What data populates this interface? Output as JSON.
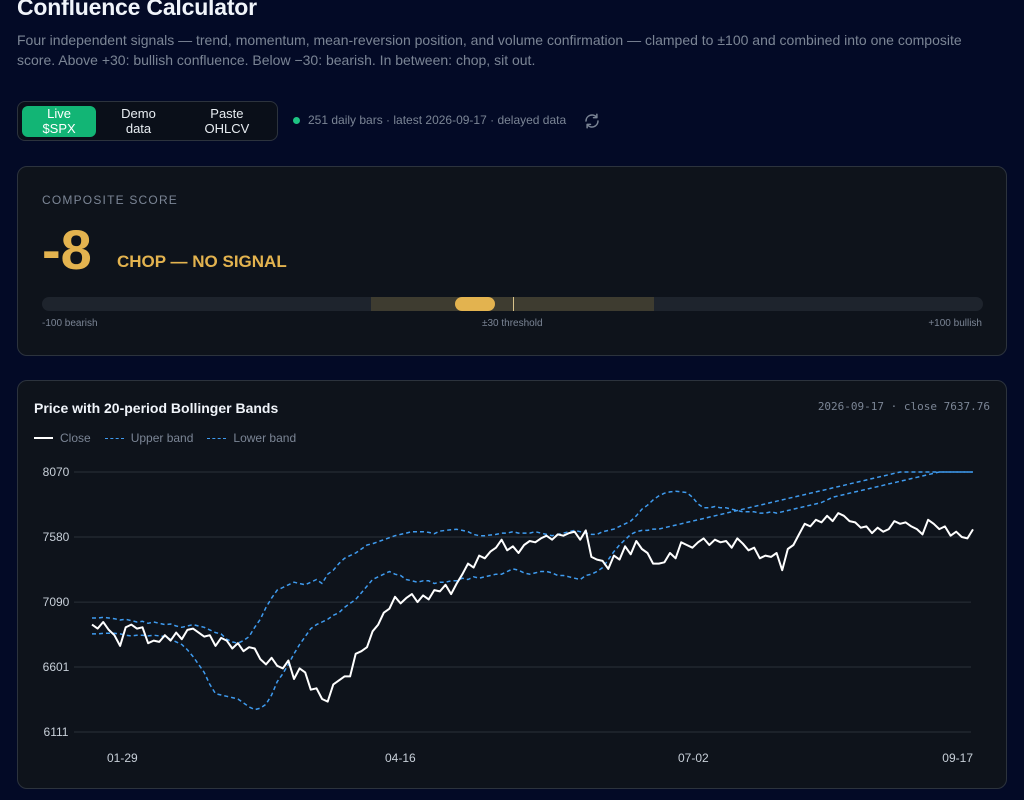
{
  "header": {
    "title": "Confluence Calculator",
    "subtitle": "Four independent signals — trend, momentum, mean-reversion position, and volume confirmation — clamped to ±100 and combined into one composite score. Above +30: bullish confluence. Below −30: bearish. In between: chop, sit out."
  },
  "toolbar": {
    "live_label": "Live $SPX",
    "demo_label": "Demo data",
    "paste_label": "Paste OHLCV",
    "active": "live"
  },
  "status": {
    "text": "251 daily bars · latest 2026-09-17  · delayed data",
    "indicator_color": "#1ec483",
    "refresh_icon": "refresh-icon"
  },
  "composite": {
    "label": "COMPOSITE SCORE",
    "value": "-8",
    "score": -8,
    "verdict": "CHOP — NO SIGNAL",
    "color": "#e3b34f",
    "threshold": 30,
    "scale_min_label": "-100 bearish",
    "scale_mid_label": "±30 threshold",
    "scale_max_label": "+100 bullish"
  },
  "chart_header": {
    "title": "Price with 20-period Bollinger Bands",
    "meta": "2026-09-17 · close 7637.76"
  },
  "chart_data": {
    "type": "line",
    "title": "Price with 20-period Bollinger Bands",
    "xlabel": "",
    "ylabel": "",
    "ylim": [
      6111,
      8070
    ],
    "y_ticks": [
      "8070",
      "7580",
      "7090",
      "6601",
      "6111"
    ],
    "x_ticks": [
      "01-29",
      "04-16",
      "07-02",
      "09-17"
    ],
    "grid": true,
    "legend_position": "top-left",
    "series": [
      {
        "name": "Close",
        "color": "#ffffff",
        "style": "solid",
        "values": [
          6920,
          6890,
          6940,
          6880,
          6840,
          6760,
          6900,
          6920,
          6890,
          6900,
          6780,
          6800,
          6790,
          6840,
          6800,
          6860,
          6810,
          6880,
          6890,
          6860,
          6830,
          6840,
          6760,
          6820,
          6800,
          6740,
          6780,
          6720,
          6750,
          6740,
          6660,
          6620,
          6670,
          6610,
          6590,
          6650,
          6510,
          6590,
          6560,
          6430,
          6440,
          6360,
          6340,
          6470,
          6500,
          6530,
          6530,
          6700,
          6720,
          6750,
          6870,
          6920,
          7010,
          7040,
          7130,
          7080,
          7120,
          7150,
          7090,
          7140,
          7110,
          7180,
          7170,
          7220,
          7150,
          7230,
          7300,
          7380,
          7350,
          7440,
          7420,
          7470,
          7500,
          7560,
          7480,
          7510,
          7460,
          7520,
          7550,
          7540,
          7570,
          7590,
          7560,
          7600,
          7590,
          7610,
          7620,
          7560,
          7630,
          7430,
          7410,
          7400,
          7340,
          7440,
          7410,
          7510,
          7450,
          7550,
          7490,
          7460,
          7380,
          7380,
          7390,
          7460,
          7420,
          7540,
          7520,
          7500,
          7540,
          7570,
          7520,
          7560,
          7540,
          7550,
          7500,
          7570,
          7530,
          7480,
          7500,
          7420,
          7440,
          7430,
          7460,
          7330,
          7490,
          7520,
          7600,
          7680,
          7660,
          7710,
          7690,
          7740,
          7700,
          7760,
          7740,
          7700,
          7690,
          7650,
          7660,
          7610,
          7650,
          7620,
          7640,
          7700,
          7680,
          7690,
          7660,
          7640,
          7600,
          7710,
          7680,
          7640,
          7660,
          7590,
          7620,
          7580,
          7570,
          7637.76
        ]
      },
      {
        "name": "Upper band",
        "color": "#3f9bef",
        "style": "dashed",
        "values": [
          6970,
          6970,
          6975,
          6970,
          6965,
          6955,
          6960,
          6950,
          6940,
          6945,
          6930,
          6940,
          6930,
          6920,
          6925,
          6910,
          6900,
          6910,
          6920,
          6910,
          6900,
          6880,
          6860,
          6850,
          6810,
          6790,
          6780,
          6800,
          6830,
          6900,
          6960,
          7050,
          7120,
          7180,
          7200,
          7220,
          7240,
          7230,
          7220,
          7240,
          7260,
          7230,
          7300,
          7330,
          7380,
          7420,
          7440,
          7460,
          7490,
          7520,
          7530,
          7545,
          7560,
          7575,
          7590,
          7600,
          7610,
          7620,
          7620,
          7620,
          7615,
          7605,
          7625,
          7630,
          7635,
          7638,
          7630,
          7620,
          7600,
          7590,
          7590,
          7595,
          7600,
          7610,
          7610,
          7620,
          7610,
          7610,
          7610,
          7620,
          7610,
          7600,
          7590,
          7600,
          7610,
          7620,
          7630,
          7620,
          7610,
          7600,
          7600,
          7620,
          7630,
          7640,
          7660,
          7680,
          7700,
          7740,
          7790,
          7820,
          7860,
          7890,
          7910,
          7920,
          7925,
          7920,
          7915,
          7880,
          7830,
          7800,
          7800,
          7810,
          7800,
          7800,
          7790,
          7780,
          7770,
          7770,
          7770,
          7760,
          7760,
          7770,
          7760,
          7770,
          7780,
          7790,
          7800,
          7810,
          7820,
          7830,
          7840,
          7860,
          7880,
          7890,
          7900,
          7910,
          7920,
          7930,
          7940,
          7950,
          7960,
          7970,
          7980,
          7990,
          8000,
          8010,
          8020,
          8030,
          8040,
          8050,
          8060,
          8070,
          8070,
          8070,
          8070,
          8070,
          8070,
          8070
        ]
      },
      {
        "name": "Lower band",
        "color": "#3f9bef",
        "style": "dashed",
        "values": [
          6850,
          6850,
          6855,
          6855,
          6855,
          6850,
          6840,
          6835,
          6840,
          6840,
          6835,
          6840,
          6835,
          6830,
          6810,
          6790,
          6770,
          6730,
          6680,
          6620,
          6560,
          6470,
          6400,
          6390,
          6380,
          6370,
          6360,
          6330,
          6300,
          6280,
          6290,
          6320,
          6390,
          6490,
          6550,
          6620,
          6700,
          6770,
          6830,
          6890,
          6920,
          6940,
          6960,
          6990,
          7010,
          7050,
          7080,
          7110,
          7160,
          7210,
          7260,
          7280,
          7300,
          7320,
          7300,
          7290,
          7260,
          7250,
          7240,
          7250,
          7250,
          7230,
          7240,
          7240,
          7250,
          7250,
          7270,
          7260,
          7280,
          7270,
          7280,
          7290,
          7300,
          7300,
          7320,
          7340,
          7330,
          7310,
          7300,
          7310,
          7320,
          7320,
          7310,
          7290,
          7290,
          7280,
          7270,
          7260,
          7290,
          7300,
          7320,
          7350,
          7410,
          7470,
          7520,
          7560,
          7600,
          7620,
          7630,
          7630,
          7640,
          7640,
          7650,
          7660,
          7670,
          7680,
          7690,
          7700,
          7710,
          7720,
          7730,
          7740,
          7750,
          7760,
          7770,
          7780,
          7790,
          7800,
          7810,
          7820,
          7830,
          7840,
          7850,
          7860,
          7870,
          7880,
          7890,
          7900,
          7910,
          7920,
          7930,
          7940,
          7950,
          7960,
          7970,
          7980,
          7990,
          8000,
          8010,
          8020,
          8030,
          8040,
          8050,
          8060,
          8070,
          8070,
          8070,
          8070,
          8070,
          8070,
          8070,
          8070,
          8070,
          8070,
          8070,
          8070,
          8070,
          8070
        ]
      }
    ]
  }
}
